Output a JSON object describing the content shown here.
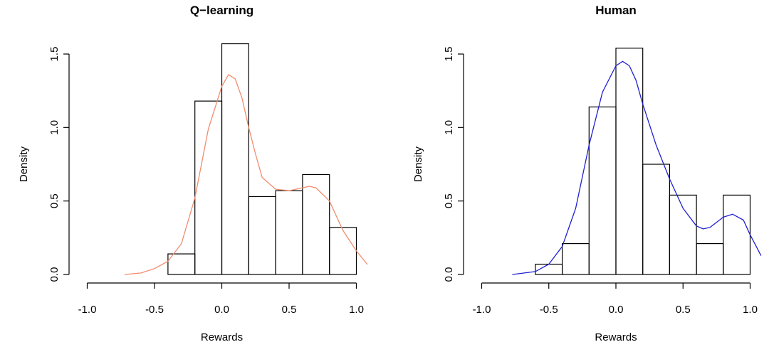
{
  "chart_data": [
    {
      "type": "histogram",
      "title": "Q−learning",
      "xlabel": "Rewards",
      "ylabel": "Density",
      "xlim": [
        -1.0,
        1.0
      ],
      "ylim": [
        0,
        1.5
      ],
      "x_ticks": [
        "-1.0",
        "-0.5",
        "0.0",
        "0.5",
        "1.0"
      ],
      "y_ticks": [
        "0.0",
        "0.5",
        "1.0",
        "1.5"
      ],
      "bins": [
        -0.4,
        -0.2,
        0.0,
        0.2,
        0.4,
        0.6,
        0.8,
        1.0
      ],
      "values": [
        0.14,
        1.18,
        1.57,
        0.53,
        0.57,
        0.68,
        0.32
      ],
      "density_color": "#f08c6e",
      "density_curve": [
        [
          -0.72,
          0.0
        ],
        [
          -0.6,
          0.01
        ],
        [
          -0.5,
          0.04
        ],
        [
          -0.4,
          0.09
        ],
        [
          -0.3,
          0.21
        ],
        [
          -0.2,
          0.52
        ],
        [
          -0.1,
          0.99
        ],
        [
          0.0,
          1.28
        ],
        [
          0.05,
          1.36
        ],
        [
          0.1,
          1.33
        ],
        [
          0.15,
          1.2
        ],
        [
          0.2,
          1.0
        ],
        [
          0.25,
          0.82
        ],
        [
          0.3,
          0.66
        ],
        [
          0.4,
          0.58
        ],
        [
          0.5,
          0.57
        ],
        [
          0.6,
          0.59
        ],
        [
          0.65,
          0.6
        ],
        [
          0.7,
          0.59
        ],
        [
          0.8,
          0.5
        ],
        [
          0.9,
          0.3
        ],
        [
          1.0,
          0.16
        ],
        [
          1.08,
          0.07
        ]
      ]
    },
    {
      "type": "histogram",
      "title": "Human",
      "xlabel": "Rewards",
      "ylabel": "Density",
      "xlim": [
        -1.0,
        1.0
      ],
      "ylim": [
        0,
        1.5
      ],
      "x_ticks": [
        "-1.0",
        "-0.5",
        "0.0",
        "0.5",
        "1.0"
      ],
      "y_ticks": [
        "0.0",
        "0.5",
        "1.0",
        "1.5"
      ],
      "bins": [
        -0.6,
        -0.4,
        -0.2,
        0.0,
        0.2,
        0.4,
        0.6,
        0.8,
        1.0
      ],
      "values": [
        0.07,
        0.21,
        1.14,
        1.54,
        0.75,
        0.54,
        0.21,
        0.54
      ],
      "density_color": "#2020d0",
      "density_curve": [
        [
          -0.77,
          0.0
        ],
        [
          -0.6,
          0.02
        ],
        [
          -0.5,
          0.07
        ],
        [
          -0.4,
          0.19
        ],
        [
          -0.3,
          0.45
        ],
        [
          -0.2,
          0.88
        ],
        [
          -0.1,
          1.24
        ],
        [
          0.0,
          1.42
        ],
        [
          0.05,
          1.45
        ],
        [
          0.1,
          1.42
        ],
        [
          0.15,
          1.32
        ],
        [
          0.2,
          1.16
        ],
        [
          0.3,
          0.88
        ],
        [
          0.4,
          0.65
        ],
        [
          0.5,
          0.45
        ],
        [
          0.6,
          0.33
        ],
        [
          0.65,
          0.31
        ],
        [
          0.7,
          0.32
        ],
        [
          0.8,
          0.39
        ],
        [
          0.87,
          0.41
        ],
        [
          0.95,
          0.37
        ],
        [
          1.0,
          0.27
        ],
        [
          1.08,
          0.13
        ]
      ]
    }
  ]
}
